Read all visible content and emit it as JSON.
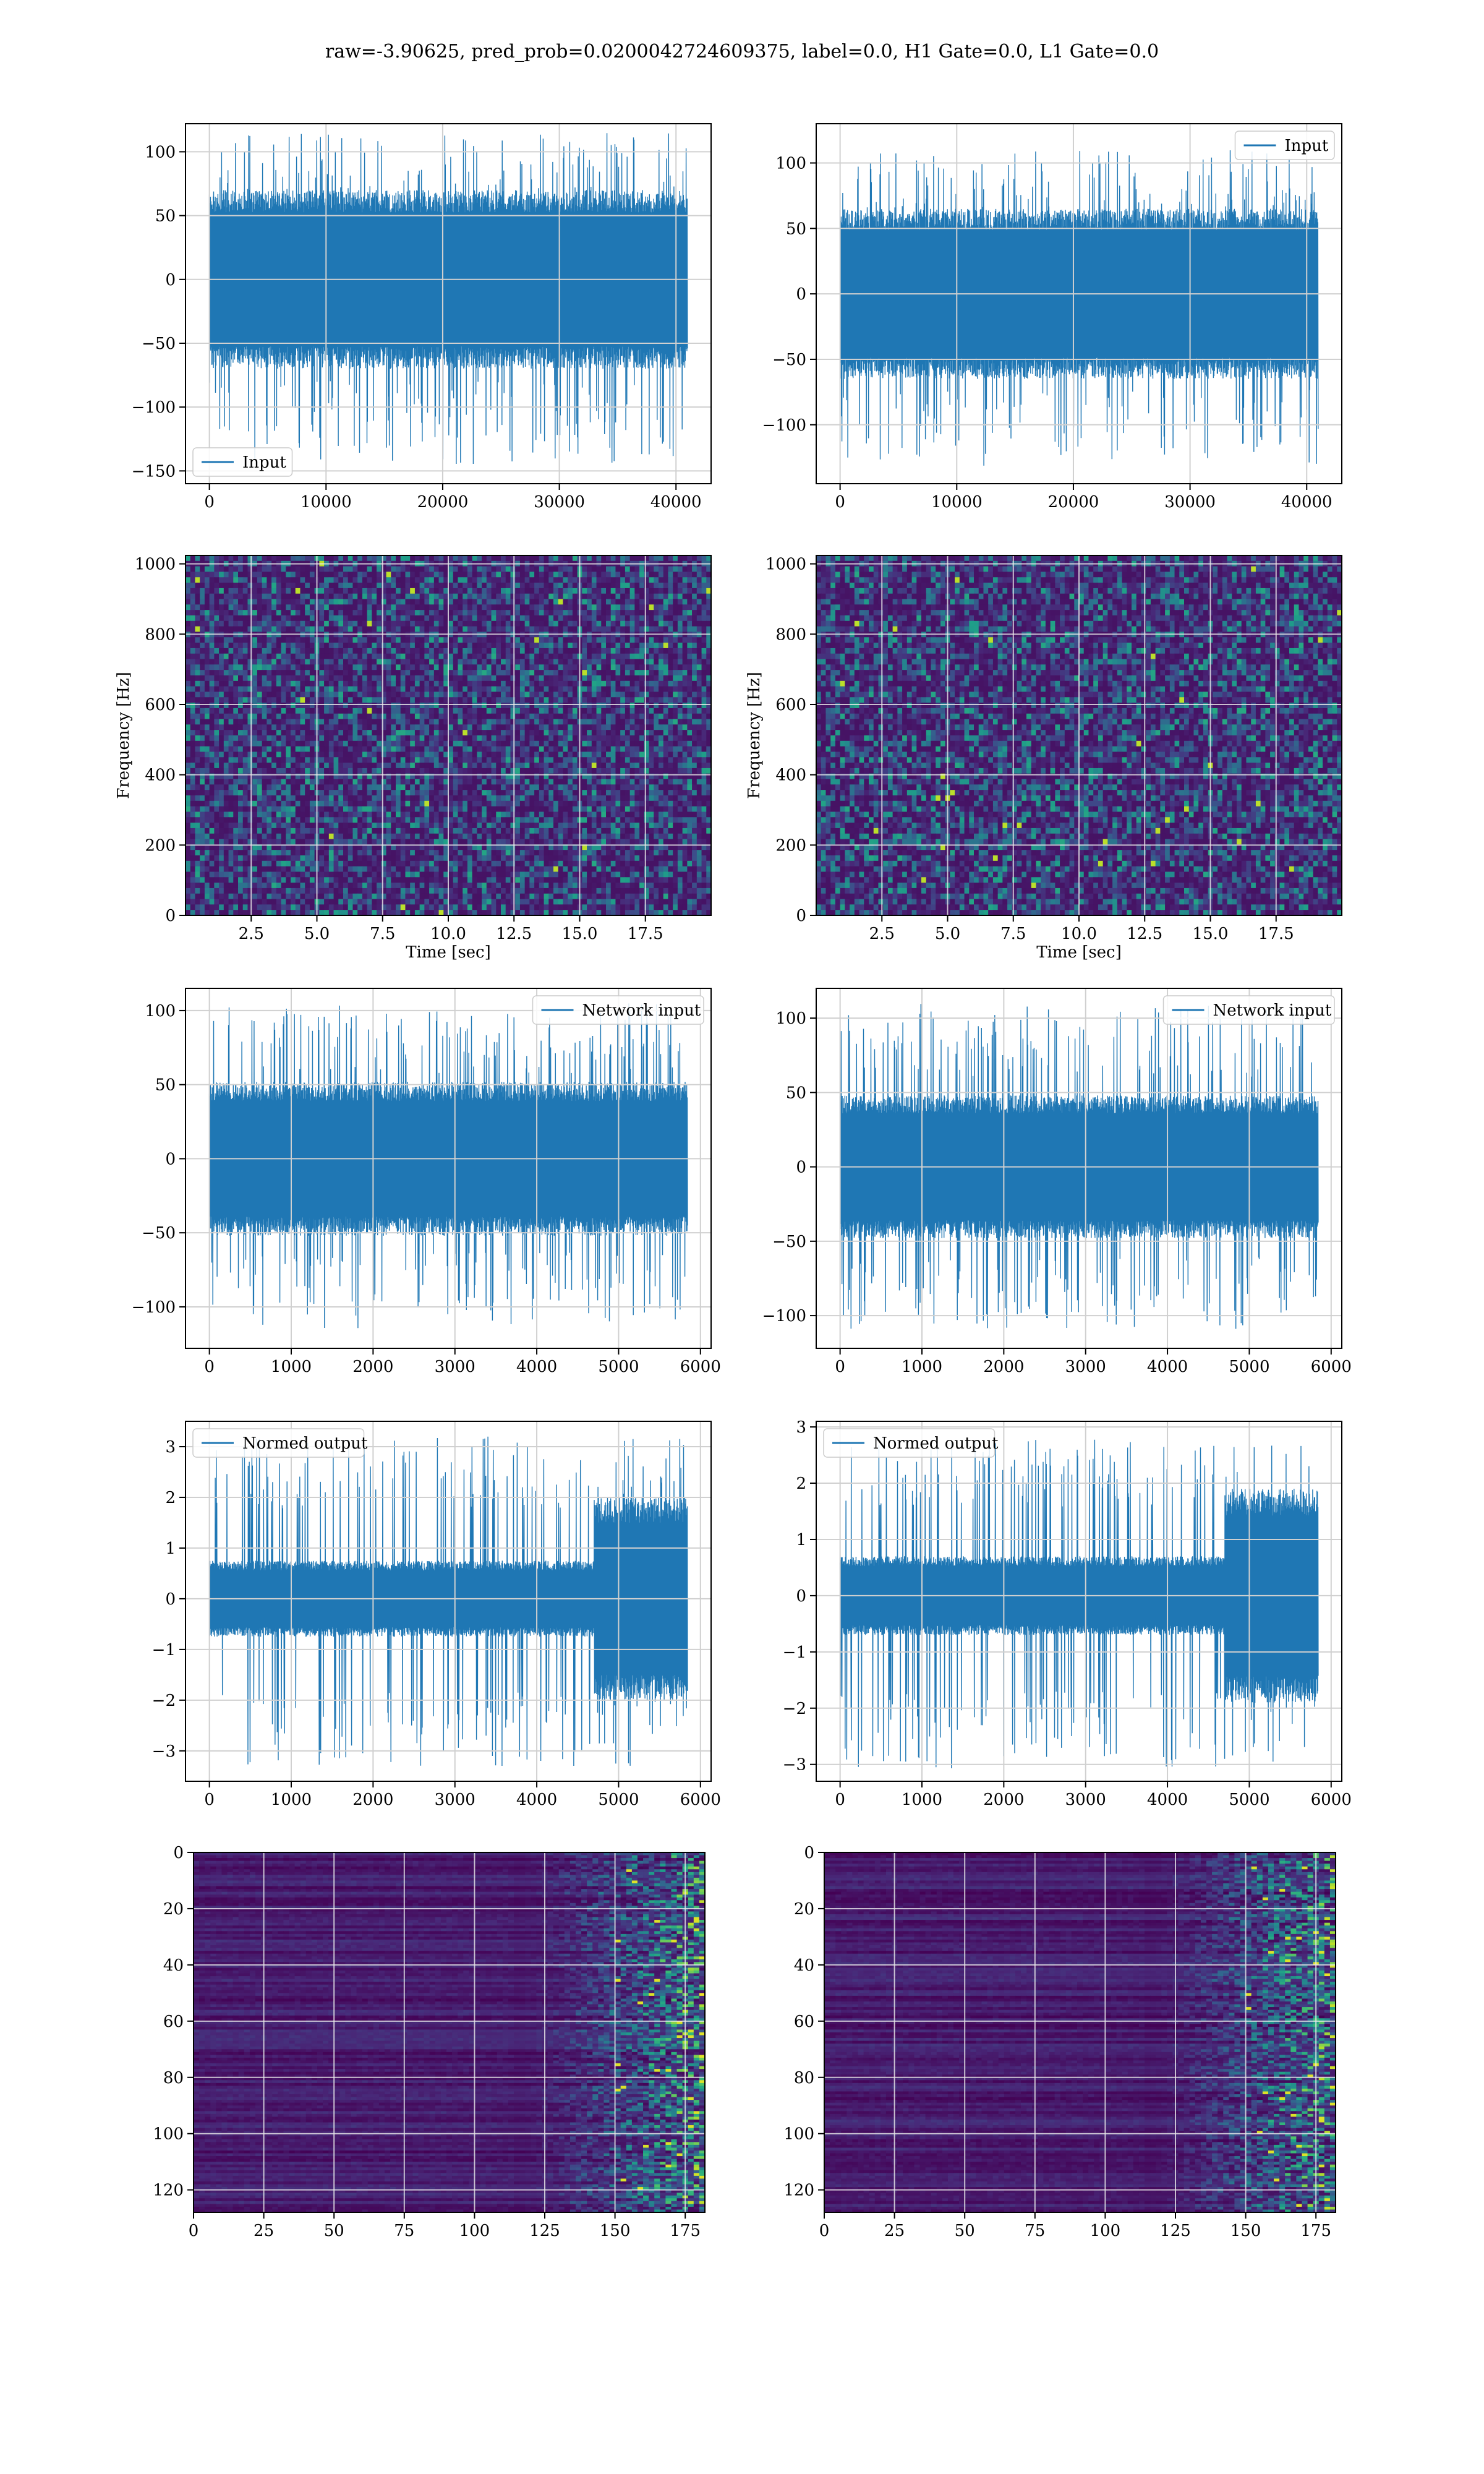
{
  "figure_title": "raw=-3.90625, pred_prob=0.0200042724609375, label=0.0, H1 Gate=0.0, L1 Gate=0.0",
  "colors": {
    "series": "#1f77b4",
    "grid": "#d0d0d0",
    "axis": "#000000"
  },
  "chart_data": [
    {
      "id": "p1",
      "type": "line",
      "title": "",
      "legend": {
        "label": "Input",
        "loc": "lower-left"
      },
      "xlim": [
        -2048,
        43008
      ],
      "ylim": [
        -160,
        122
      ],
      "xticks": [
        0,
        10000,
        20000,
        30000,
        40000
      ],
      "xtick_labels": [
        "0",
        "10000",
        "20000",
        "30000",
        "40000"
      ],
      "yticks": [
        -150,
        -100,
        -50,
        0,
        50,
        100
      ],
      "ytick_labels": [
        "−150",
        "−100",
        "−50",
        "0",
        "50",
        "100"
      ],
      "grid": true,
      "xlabel": "",
      "ylabel": "",
      "signal": {
        "n_samples": 40960,
        "core_amplitude": 70,
        "peak_max": 115,
        "peak_min": -145
      }
    },
    {
      "id": "p2",
      "type": "line",
      "title": "",
      "legend": {
        "label": "Input",
        "loc": "upper-right"
      },
      "xlim": [
        -2048,
        43008
      ],
      "ylim": [
        -145,
        130
      ],
      "xticks": [
        0,
        10000,
        20000,
        30000,
        40000
      ],
      "xtick_labels": [
        "0",
        "10000",
        "20000",
        "30000",
        "40000"
      ],
      "yticks": [
        -100,
        -50,
        0,
        50,
        100
      ],
      "ytick_labels": [
        "−100",
        "−50",
        "0",
        "50",
        "100"
      ],
      "grid": true,
      "xlabel": "",
      "ylabel": "",
      "signal": {
        "n_samples": 40960,
        "core_amplitude": 65,
        "peak_max": 110,
        "peak_min": -132
      }
    },
    {
      "id": "p3",
      "type": "heatmap",
      "title": "",
      "xlim": [
        0,
        20
      ],
      "ylim": [
        0,
        1024
      ],
      "xticks": [
        2.5,
        5.0,
        7.5,
        10.0,
        12.5,
        15.0,
        17.5
      ],
      "xtick_labels": [
        "2.5",
        "5.0",
        "7.5",
        "10.0",
        "12.5",
        "15.0",
        "17.5"
      ],
      "yticks": [
        0,
        200,
        400,
        600,
        800,
        1000
      ],
      "ytick_labels": [
        "0",
        "200",
        "400",
        "600",
        "800",
        "1000"
      ],
      "grid": true,
      "xlabel": "Time [sec]",
      "ylabel": "Frequency [Hz]",
      "colormap": "viridis"
    },
    {
      "id": "p4",
      "type": "heatmap",
      "title": "",
      "xlim": [
        0,
        20
      ],
      "ylim": [
        0,
        1024
      ],
      "xticks": [
        2.5,
        5.0,
        7.5,
        10.0,
        12.5,
        15.0,
        17.5
      ],
      "xtick_labels": [
        "2.5",
        "5.0",
        "7.5",
        "10.0",
        "12.5",
        "15.0",
        "17.5"
      ],
      "yticks": [
        0,
        200,
        400,
        600,
        800,
        1000
      ],
      "ytick_labels": [
        "0",
        "200",
        "400",
        "600",
        "800",
        "1000"
      ],
      "grid": true,
      "xlabel": "Time [sec]",
      "ylabel": "Frequency [Hz]",
      "colormap": "viridis"
    },
    {
      "id": "p5",
      "type": "line",
      "title": "",
      "legend": {
        "label": "Network input",
        "loc": "upper-right"
      },
      "xlim": [
        -292,
        6130
      ],
      "ylim": [
        -128,
        115
      ],
      "xticks": [
        0,
        1000,
        2000,
        3000,
        4000,
        5000,
        6000
      ],
      "xtick_labels": [
        "0",
        "1000",
        "2000",
        "3000",
        "4000",
        "5000",
        "6000"
      ],
      "yticks": [
        -100,
        -50,
        0,
        50,
        100
      ],
      "ytick_labels": [
        "−100",
        "−50",
        "0",
        "50",
        "100"
      ],
      "grid": true,
      "xlabel": "",
      "ylabel": "",
      "signal": {
        "n_samples": 5840,
        "core_amplitude": 52,
        "peak_max": 105,
        "peak_min": -115
      }
    },
    {
      "id": "p6",
      "type": "line",
      "title": "",
      "legend": {
        "label": "Network input",
        "loc": "upper-right"
      },
      "xlim": [
        -292,
        6130
      ],
      "ylim": [
        -122,
        120
      ],
      "xticks": [
        0,
        1000,
        2000,
        3000,
        4000,
        5000,
        6000
      ],
      "xtick_labels": [
        "0",
        "1000",
        "2000",
        "3000",
        "4000",
        "5000",
        "6000"
      ],
      "yticks": [
        -100,
        -50,
        0,
        50,
        100
      ],
      "ytick_labels": [
        "−100",
        "−50",
        "0",
        "50",
        "100"
      ],
      "grid": true,
      "xlabel": "",
      "ylabel": "",
      "signal": {
        "n_samples": 5840,
        "core_amplitude": 48,
        "peak_max": 110,
        "peak_min": -110
      }
    },
    {
      "id": "p7",
      "type": "line",
      "title": "",
      "legend": {
        "label": "Normed output",
        "loc": "upper-left"
      },
      "xlim": [
        -292,
        6130
      ],
      "ylim": [
        -3.6,
        3.5
      ],
      "xticks": [
        0,
        1000,
        2000,
        3000,
        4000,
        5000,
        6000
      ],
      "xtick_labels": [
        "0",
        "1000",
        "2000",
        "3000",
        "4000",
        "5000",
        "6000"
      ],
      "yticks": [
        -3,
        -2,
        -1,
        0,
        1,
        2,
        3
      ],
      "ytick_labels": [
        "−3",
        "−2",
        "−1",
        "0",
        "1",
        "2",
        "3"
      ],
      "grid": true,
      "xlabel": "",
      "ylabel": "",
      "signal": {
        "n_samples": 5840,
        "core_amplitude": 0.75,
        "peak_max": 3.2,
        "peak_min": -3.3,
        "burst_start": 4700,
        "burst_amplitude": 2.0
      }
    },
    {
      "id": "p8",
      "type": "line",
      "title": "",
      "legend": {
        "label": "Normed output",
        "loc": "upper-left"
      },
      "xlim": [
        -292,
        6130
      ],
      "ylim": [
        -3.3,
        3.1
      ],
      "xticks": [
        0,
        1000,
        2000,
        3000,
        4000,
        5000,
        6000
      ],
      "xtick_labels": [
        "0",
        "1000",
        "2000",
        "3000",
        "4000",
        "5000",
        "6000"
      ],
      "yticks": [
        -3,
        -2,
        -1,
        0,
        1,
        2,
        3
      ],
      "ytick_labels": [
        "−3",
        "−2",
        "−1",
        "0",
        "1",
        "2",
        "3"
      ],
      "grid": true,
      "xlabel": "",
      "ylabel": "",
      "signal": {
        "n_samples": 5840,
        "core_amplitude": 0.7,
        "peak_max": 2.8,
        "peak_min": -3.1,
        "burst_start": 4700,
        "burst_amplitude": 1.9
      }
    },
    {
      "id": "p9",
      "type": "heatmap",
      "title": "",
      "xlim": [
        0,
        182
      ],
      "ylim": [
        128,
        0
      ],
      "xticks": [
        0,
        25,
        50,
        75,
        100,
        125,
        150,
        175
      ],
      "xtick_labels": [
        "0",
        "25",
        "50",
        "75",
        "100",
        "125",
        "150",
        "175"
      ],
      "yticks": [
        0,
        20,
        40,
        60,
        80,
        100,
        120
      ],
      "ytick_labels": [
        "0",
        "20",
        "40",
        "60",
        "80",
        "100",
        "120"
      ],
      "grid": true,
      "xlabel": "",
      "ylabel": "",
      "colormap": "viridis"
    },
    {
      "id": "p10",
      "type": "heatmap",
      "title": "",
      "xlim": [
        0,
        182
      ],
      "ylim": [
        128,
        0
      ],
      "xticks": [
        0,
        25,
        50,
        75,
        100,
        125,
        150,
        175
      ],
      "xtick_labels": [
        "0",
        "25",
        "50",
        "75",
        "100",
        "125",
        "150",
        "175"
      ],
      "yticks": [
        0,
        20,
        40,
        60,
        80,
        100,
        120
      ],
      "ytick_labels": [
        "0",
        "20",
        "40",
        "60",
        "80",
        "100",
        "120"
      ],
      "grid": true,
      "xlabel": "",
      "ylabel": "",
      "colormap": "viridis"
    }
  ]
}
